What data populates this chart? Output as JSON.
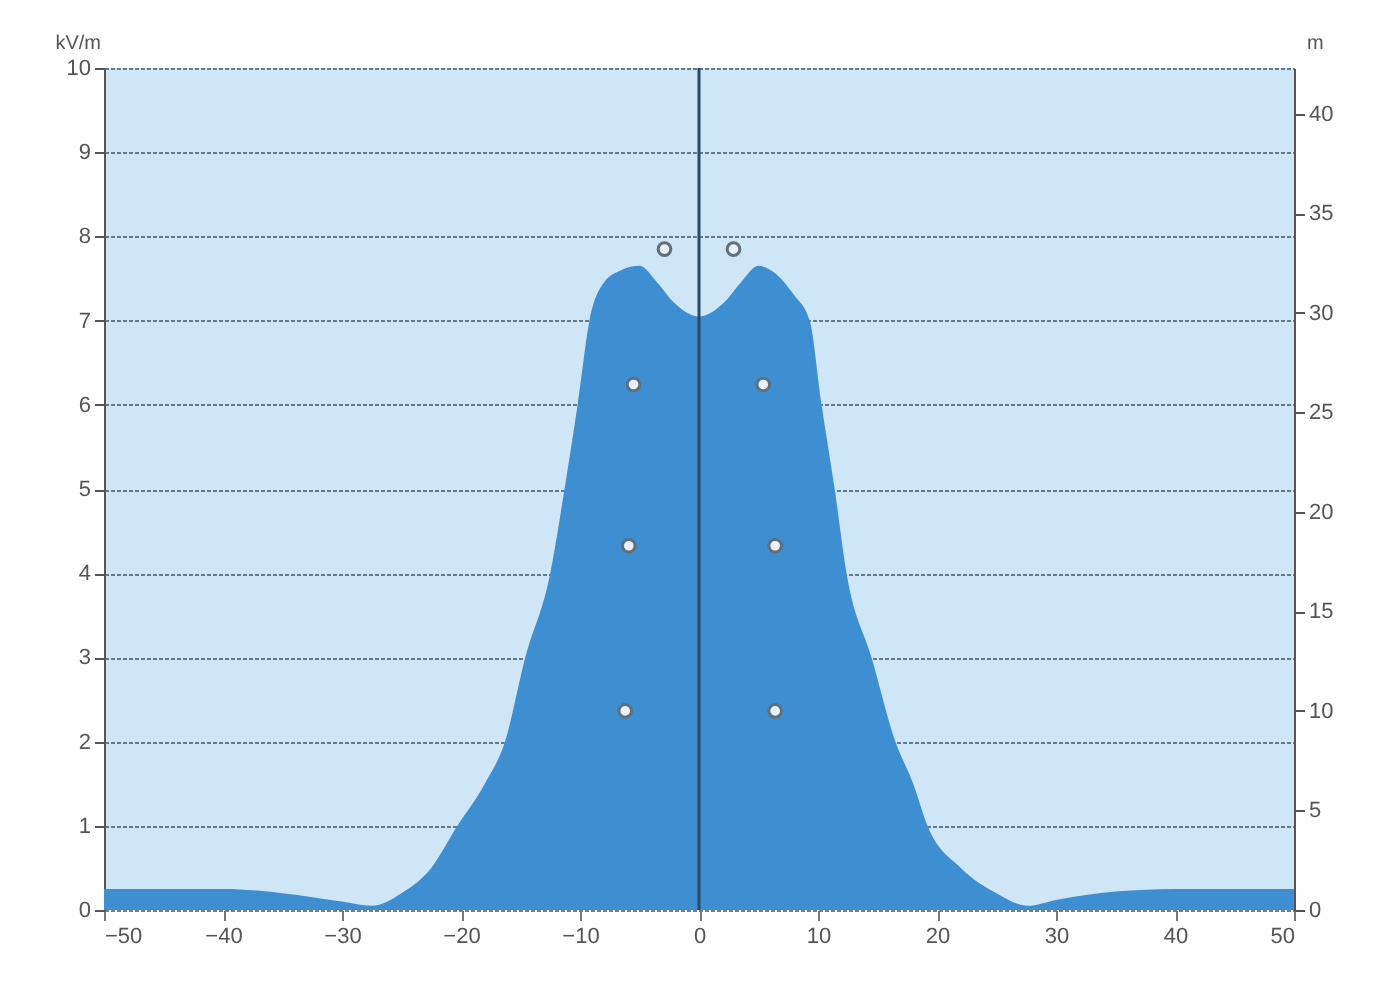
{
  "chart_data": {
    "type": "area",
    "ylabel": "kV/m",
    "y2label": "m",
    "xlim": [
      -50,
      50
    ],
    "xticks": [
      -50,
      -40,
      -30,
      -20,
      -10,
      0,
      10,
      20,
      30,
      40,
      50
    ],
    "ylim": [
      0,
      10
    ],
    "yticks": [
      0,
      1,
      2,
      3,
      4,
      5,
      6,
      7,
      8,
      9,
      10
    ],
    "y2lim": [
      0,
      42.3
    ],
    "y2ticks": [
      0,
      5,
      10,
      15,
      20,
      25,
      30,
      35,
      40
    ],
    "grid": "y",
    "ref_lines": [
      {
        "axis": "x",
        "value": 0,
        "color": "#2b4a66"
      }
    ],
    "series": [
      {
        "color": "#3d8fd1",
        "x": [
          -50,
          -40,
          -35,
          -30,
          -27.5,
          -25,
          -22.5,
          -20.3,
          -18,
          -16.3,
          -14.6,
          -12.5,
          -11.3,
          -10.2,
          -9.2,
          -8,
          -6.5,
          -5,
          -3.5,
          -2,
          0,
          2,
          3.5,
          5,
          6.5,
          8,
          9.3,
          10.3,
          11.4,
          12.4,
          14.5,
          16.5,
          18,
          19.2,
          22,
          25,
          27.6,
          30,
          35,
          40,
          50
        ],
        "values": [
          0.25,
          0.25,
          0.2,
          0.1,
          0.05,
          0.2,
          0.5,
          1,
          1.5,
          2,
          3,
          4,
          5,
          6,
          7,
          7.45,
          7.6,
          7.65,
          7.45,
          7.2,
          7.05,
          7.2,
          7.45,
          7.65,
          7.55,
          7.3,
          7,
          6,
          5,
          4,
          3,
          2,
          1.5,
          1,
          0.5,
          0.2,
          0.05,
          0.12,
          0.22,
          0.25,
          0.25
        ]
      },
      {
        "type": "scatter",
        "axis": "y2",
        "color": "#5f6f7c",
        "marker": "circle",
        "x": [
          -2.9,
          2.9,
          -5.5,
          5.4,
          -5.9,
          6.4,
          -6.2,
          6.4
        ],
        "values": [
          33.2,
          33.2,
          26.4,
          26.4,
          18.3,
          18.3,
          10,
          10
        ]
      }
    ]
  }
}
